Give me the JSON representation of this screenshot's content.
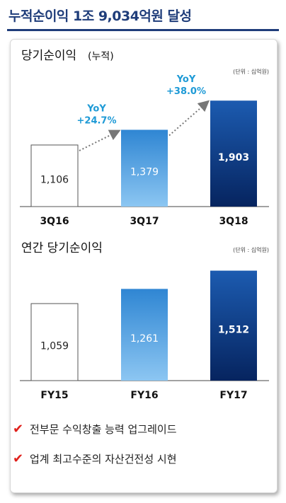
{
  "header": {
    "title": "누적순이익 1조 9,034억원 달성",
    "accent": "#1f3d7a"
  },
  "chart_data": [
    {
      "type": "bar",
      "title": "당기순이익",
      "title_suffix": "(누적)",
      "unit_note": "(단위 : 십억원)",
      "categories": [
        "3Q16",
        "3Q17",
        "3Q18"
      ],
      "values": [
        1106,
        1379,
        1903
      ],
      "value_labels": [
        "1,106",
        "1,379",
        "1,903"
      ],
      "growth": [
        {
          "label": "YoY",
          "value": "+24.7%"
        },
        {
          "label": "YoY",
          "value": "+38.0%"
        }
      ]
    },
    {
      "type": "bar",
      "title": "연간 당기순이익",
      "unit_note": "(단위 : 십억원)",
      "categories": [
        "FY15",
        "FY16",
        "FY17"
      ],
      "values": [
        1059,
        1261,
        1512
      ],
      "value_labels": [
        "1,059",
        "1,261",
        "1,512"
      ]
    }
  ],
  "bullets": [
    {
      "icon": "check-icon",
      "text": "전부문 수익창출 능력 업그레이드"
    },
    {
      "icon": "check-icon",
      "text": "업계 최고수준의 자산건전성 시현"
    }
  ],
  "colors": {
    "light": "#5aa6e6",
    "dark": "#0b2f7a",
    "growth_text": "#1e9ad6"
  }
}
